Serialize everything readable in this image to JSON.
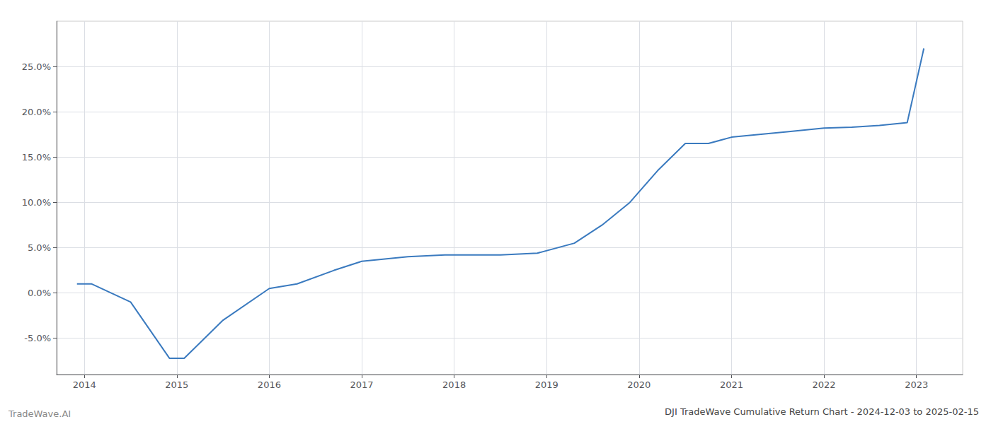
{
  "chart_data": {
    "type": "line",
    "title": "DJI TradeWave Cumulative Return Chart - 2024-12-03 to 2025-02-15",
    "annotations": [
      "TradeWave.AI"
    ],
    "x": [
      2013.92,
      2014.08,
      2014.5,
      2014.92,
      2015.08,
      2015.5,
      2016.0,
      2016.3,
      2016.7,
      2017.0,
      2017.5,
      2017.9,
      2018.08,
      2018.5,
      2018.9,
      2019.3,
      2019.6,
      2019.9,
      2020.2,
      2020.5,
      2020.75,
      2021.0,
      2021.3,
      2021.6,
      2022.0,
      2022.3,
      2022.6,
      2022.9,
      2023.08
    ],
    "values": [
      0.01,
      0.01,
      -0.01,
      -0.072,
      -0.072,
      -0.03,
      0.005,
      0.01,
      0.025,
      0.035,
      0.04,
      0.042,
      0.042,
      0.042,
      0.044,
      0.055,
      0.075,
      0.1,
      0.135,
      0.165,
      0.165,
      0.172,
      0.175,
      0.178,
      0.182,
      0.183,
      0.185,
      0.188,
      0.27
    ],
    "color": "#3a7abf",
    "xlim": [
      2013.7,
      2023.5
    ],
    "xticks": [
      2014,
      2015,
      2016,
      2017,
      2018,
      2019,
      2020,
      2021,
      2022,
      2023
    ],
    "ylim": [
      -0.09,
      0.3
    ],
    "yticks": [
      {
        "value": -0.05,
        "label": "-5.0%"
      },
      {
        "value": 0.0,
        "label": "0.0%"
      },
      {
        "value": 0.05,
        "label": "5.0%"
      },
      {
        "value": 0.1,
        "label": "10.0%"
      },
      {
        "value": 0.15,
        "label": "15.0%"
      },
      {
        "value": 0.2,
        "label": "20.0%"
      },
      {
        "value": 0.25,
        "label": "25.0%"
      }
    ],
    "grid": true
  }
}
